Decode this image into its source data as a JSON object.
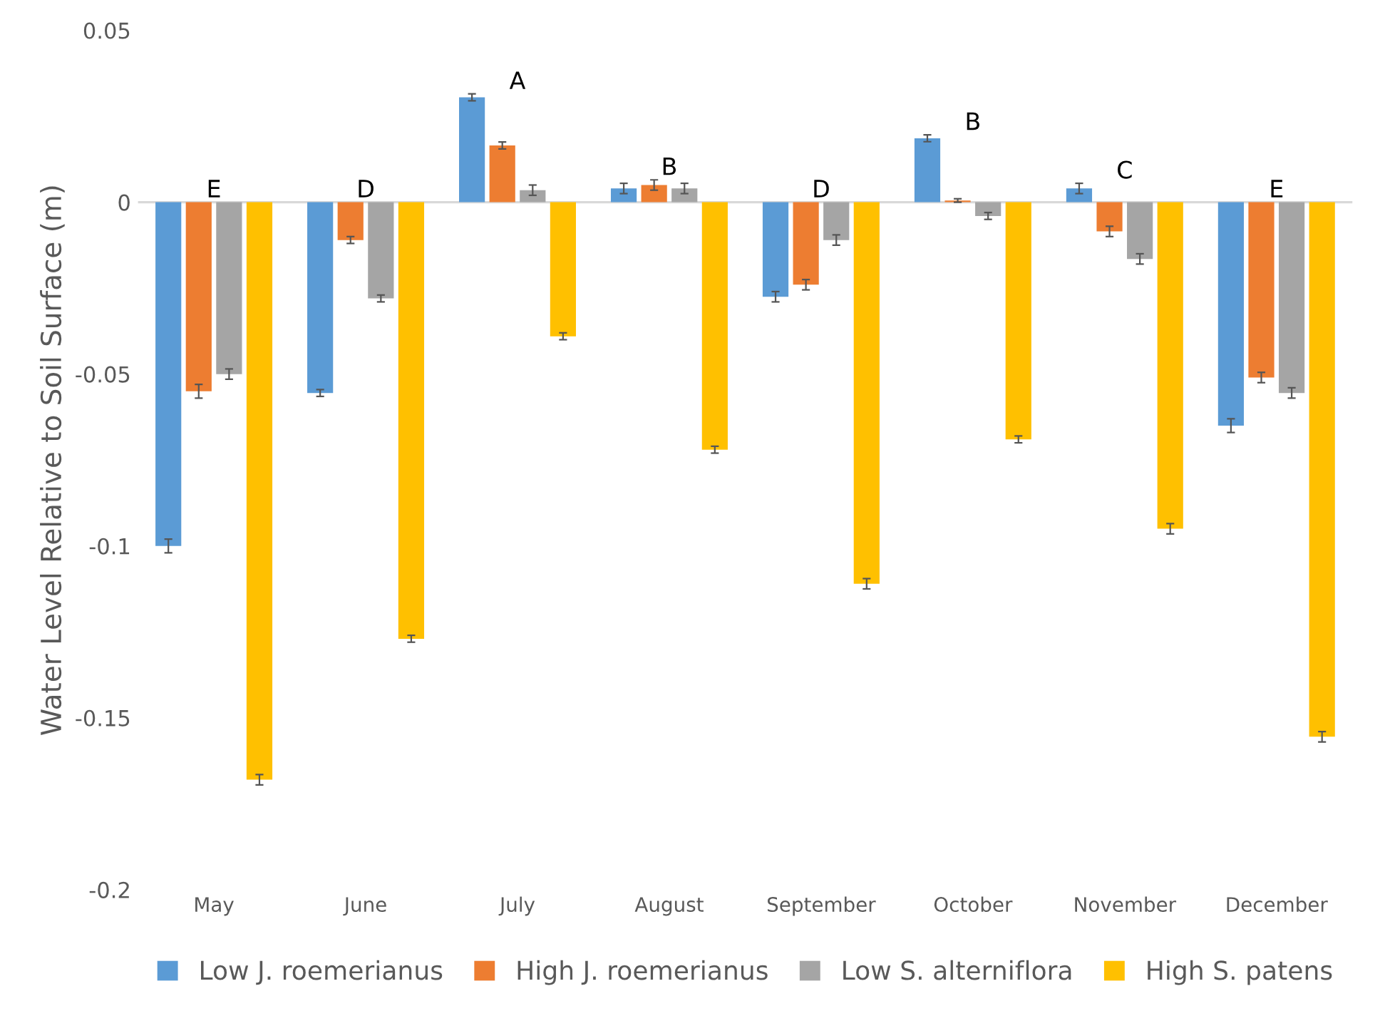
{
  "chart_data": {
    "type": "bar",
    "ylabel": "Water Level Relative to Soil Surface (m)",
    "categories": [
      "May",
      "June",
      "July",
      "August",
      "September",
      "October",
      "November",
      "December"
    ],
    "series": [
      {
        "name": "Low J. roemerianus",
        "color": "#5b9bd5",
        "values": [
          -0.1,
          -0.0555,
          0.0305,
          0.004,
          -0.0275,
          0.0186,
          0.004,
          -0.065
        ],
        "errors": [
          0.002,
          0.001,
          0.001,
          0.0015,
          0.0015,
          0.001,
          0.0015,
          0.002
        ]
      },
      {
        "name": "High J. roemerianus",
        "color": "#ed7d31",
        "values": [
          -0.055,
          -0.011,
          0.0165,
          0.005,
          -0.024,
          0.0005,
          -0.0085,
          -0.051
        ],
        "errors": [
          0.002,
          0.001,
          0.001,
          0.0015,
          0.0015,
          0.0005,
          0.0015,
          0.0015
        ]
      },
      {
        "name": "Low S. alterniflora",
        "color": "#a5a5a5",
        "values": [
          -0.05,
          -0.028,
          0.0035,
          0.004,
          -0.011,
          -0.004,
          -0.0165,
          -0.0555
        ],
        "errors": [
          0.0015,
          0.001,
          0.0015,
          0.0015,
          0.0015,
          0.001,
          0.0015,
          0.0015
        ]
      },
      {
        "name": "High S. patens",
        "color": "#ffc000",
        "values": [
          -0.168,
          -0.127,
          -0.039,
          -0.072,
          -0.111,
          -0.069,
          -0.095,
          -0.1555
        ],
        "errors": [
          0.0015,
          0.001,
          0.001,
          0.001,
          0.0015,
          0.001,
          0.0015,
          0.0015
        ]
      }
    ],
    "ylim": [
      -0.2,
      0.05
    ],
    "yticks": [
      -0.2,
      -0.15,
      -0.1,
      -0.05,
      0,
      0.05
    ],
    "annotations": [
      "E",
      "D",
      "A",
      "B",
      "D",
      "B",
      "C",
      "E"
    ],
    "ref_lines": [
      {
        "axis": "y",
        "value": 0,
        "color": "#d9d9d9"
      }
    ],
    "grid": false,
    "legend": "bottom"
  }
}
